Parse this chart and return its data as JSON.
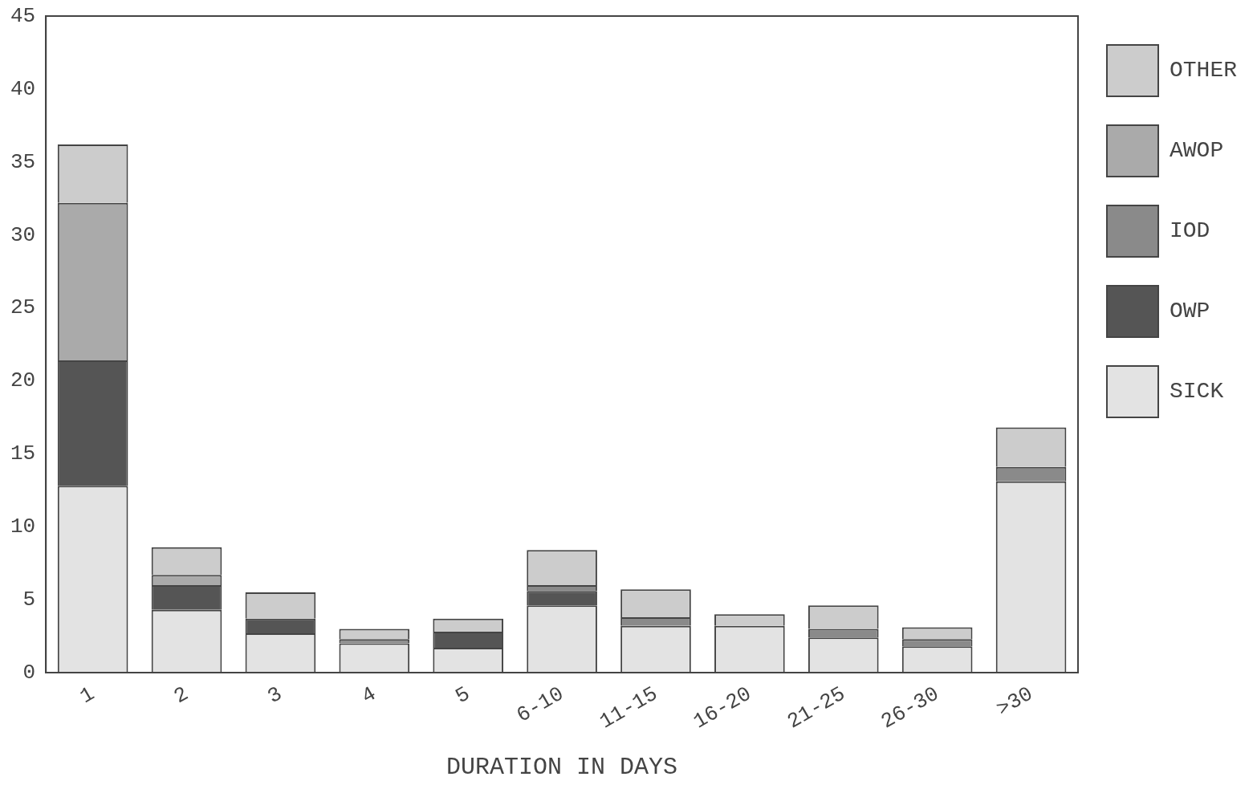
{
  "chart_data": {
    "type": "bar",
    "stacked": true,
    "xlabel": "DURATION IN DAYS",
    "categories": [
      "1",
      "2",
      "3",
      "4",
      "5",
      "6-10",
      "11-15",
      "16-20",
      "21-25",
      "26-30",
      ">30"
    ],
    "series": [
      {
        "name": "SICK",
        "color": "#e3e3e3",
        "values": [
          12.8,
          4.3,
          2.7,
          2.0,
          1.7,
          4.6,
          3.2,
          3.2,
          2.4,
          1.8,
          13.1
        ]
      },
      {
        "name": "OWP",
        "color": "#555555",
        "values": [
          8.6,
          1.7,
          1.0,
          0,
          1.1,
          1.0,
          0,
          0,
          0,
          0,
          0
        ]
      },
      {
        "name": "IOD",
        "color": "#8a8a8a",
        "values": [
          0,
          0,
          0,
          0.3,
          0,
          0.4,
          0.6,
          0,
          0.6,
          0.5,
          1.0
        ]
      },
      {
        "name": "AWOP",
        "color": "#aaaaaa",
        "values": [
          10.8,
          0.7,
          0,
          0,
          0,
          0,
          0,
          0,
          0,
          0,
          0
        ]
      },
      {
        "name": "OTHER",
        "color": "#cccccc",
        "values": [
          4.0,
          1.9,
          1.8,
          0.7,
          0.9,
          2.4,
          1.9,
          0.8,
          1.6,
          0.8,
          2.7
        ]
      }
    ],
    "ylim": [
      0,
      45
    ],
    "yticks": [
      0,
      5,
      10,
      15,
      20,
      25,
      30,
      35,
      40,
      45
    ],
    "grid": false,
    "legend": "right"
  }
}
